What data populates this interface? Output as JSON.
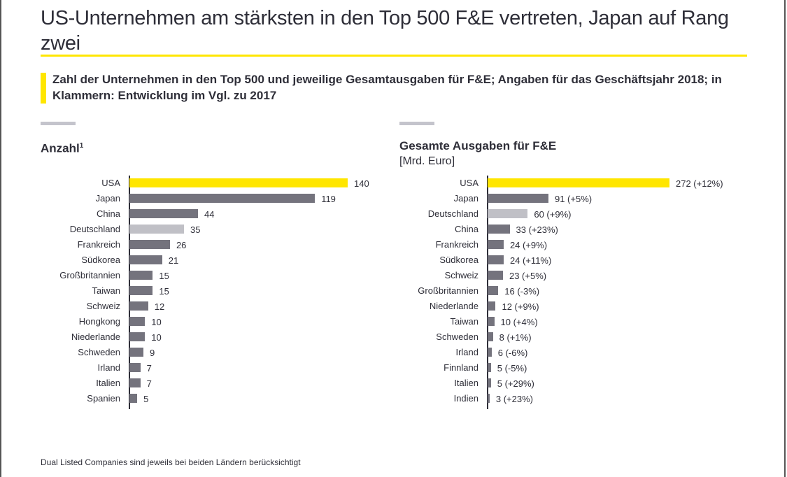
{
  "title": "US-Unternehmen am stärksten in den Top 500 F&E vertreten, Japan auf Rang zwei",
  "subtitle": "Zahl der Unternehmen in den Top 500 und jeweilige Gesamtausgaben für F&E; Angaben für das Geschäftsjahr 2018; in Klammern: Entwicklung im Vgl. zu 2017",
  "footnote": "Dual Listed Companies sind jeweils bei beiden Ländern berücksichtigt",
  "colors": {
    "highlight": "#ffe600",
    "germany": "#c0c0c6",
    "default": "#74737d",
    "accent_rule": "#ffe600"
  },
  "chart_data": [
    {
      "type": "bar",
      "orientation": "horizontal",
      "title": "Anzahl",
      "title_sup": "1",
      "categories": [
        "USA",
        "Japan",
        "China",
        "Deutschland",
        "Frankreich",
        "Südkorea",
        "Großbritannien",
        "Taiwan",
        "Schweiz",
        "Hongkong",
        "Niederlande",
        "Schweden",
        "Irland",
        "Italien",
        "Spanien"
      ],
      "values": [
        140,
        119,
        44,
        35,
        26,
        21,
        15,
        15,
        12,
        10,
        10,
        9,
        7,
        7,
        5
      ],
      "labels": [
        "140",
        "119",
        "44",
        "35",
        "26",
        "21",
        "15",
        "15",
        "12",
        "10",
        "10",
        "9",
        "7",
        "7",
        "5"
      ],
      "xlim": [
        0,
        140
      ]
    },
    {
      "type": "bar",
      "orientation": "horizontal",
      "title": "Gesamte Ausgaben für F&E",
      "unit": "[Mrd. Euro]",
      "categories": [
        "USA",
        "Japan",
        "Deutschland",
        "China",
        "Frankreich",
        "Südkorea",
        "Schweiz",
        "Großbritannien",
        "Niederlande",
        "Taiwan",
        "Schweden",
        "Irland",
        "Finnland",
        "Italien",
        "Indien"
      ],
      "values": [
        272,
        91,
        60,
        33,
        24,
        24,
        23,
        16,
        12,
        10,
        8,
        6,
        5,
        5,
        3
      ],
      "labels": [
        "272 (+12%)",
        "91 (+5%)",
        "60 (+9%)",
        "33 (+23%)",
        "24 (+9%)",
        "24 (+11%)",
        "23 (+5%)",
        "16 (-3%)",
        "12 (+9%)",
        "10 (+4%)",
        "8 (+1%)",
        "6 (-6%)",
        "5 (-5%)",
        "5 (+29%)",
        "3 (+23%)"
      ],
      "xlim": [
        0,
        272
      ]
    }
  ]
}
